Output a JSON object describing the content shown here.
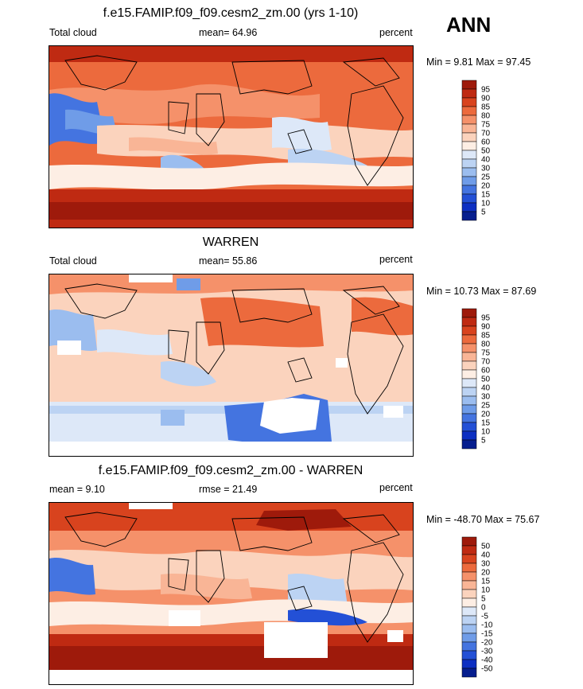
{
  "season": "ANN",
  "panels": [
    {
      "title": "f.e15.FAMIP.f09_f09.cesm2_zm.00 (yrs 1-10)",
      "left_label": "Total cloud",
      "center_label": "mean=  64.96",
      "right_label": "percent",
      "minmax": "Min =   9.81 Max =  97.45",
      "colorbar": {
        "labels": [
          "95",
          "90",
          "85",
          "80",
          "75",
          "70",
          "60",
          "50",
          "40",
          "30",
          "25",
          "20",
          "15",
          "10",
          "5"
        ],
        "colors": [
          "#9e1a0b",
          "#bf2a12",
          "#d8431e",
          "#ec6a3d",
          "#f5916a",
          "#f9b596",
          "#fbd3bd",
          "#fdeee4",
          "#dde8f8",
          "#bcd3f3",
          "#9bbdef",
          "#6f9ce8",
          "#4474e0",
          "#2350d6",
          "#0d2fc2",
          "#061e8e"
        ]
      }
    },
    {
      "title": "WARREN",
      "left_label": "Total cloud",
      "center_label": "mean=  55.86",
      "right_label": "percent",
      "minmax": "Min =  10.73 Max =  87.69",
      "colorbar": {
        "labels": [
          "95",
          "90",
          "85",
          "80",
          "75",
          "70",
          "60",
          "50",
          "40",
          "30",
          "25",
          "20",
          "15",
          "10",
          "5"
        ],
        "colors": [
          "#9e1a0b",
          "#bf2a12",
          "#d8431e",
          "#ec6a3d",
          "#f5916a",
          "#f9b596",
          "#fbd3bd",
          "#fdeee4",
          "#dde8f8",
          "#bcd3f3",
          "#9bbdef",
          "#6f9ce8",
          "#4474e0",
          "#2350d6",
          "#0d2fc2",
          "#061e8e"
        ]
      }
    },
    {
      "title": "f.e15.FAMIP.f09_f09.cesm2_zm.00 - WARREN",
      "left_label": "mean =   9.10",
      "center_label": "rmse =  21.49",
      "right_label": "percent",
      "minmax": "Min = -48.70 Max =  75.67",
      "colorbar": {
        "labels": [
          "50",
          "40",
          "30",
          "20",
          "15",
          "10",
          "5",
          "0",
          "-5",
          "-10",
          "-15",
          "-20",
          "-30",
          "-40",
          "-50"
        ],
        "colors": [
          "#9e1a0b",
          "#bf2a12",
          "#d8431e",
          "#ec6a3d",
          "#f5916a",
          "#f9b596",
          "#fbd3bd",
          "#fdeee4",
          "#dde8f8",
          "#bcd3f3",
          "#9bbdef",
          "#6f9ce8",
          "#4474e0",
          "#2350d6",
          "#0d2fc2",
          "#061e8e"
        ]
      }
    }
  ]
}
